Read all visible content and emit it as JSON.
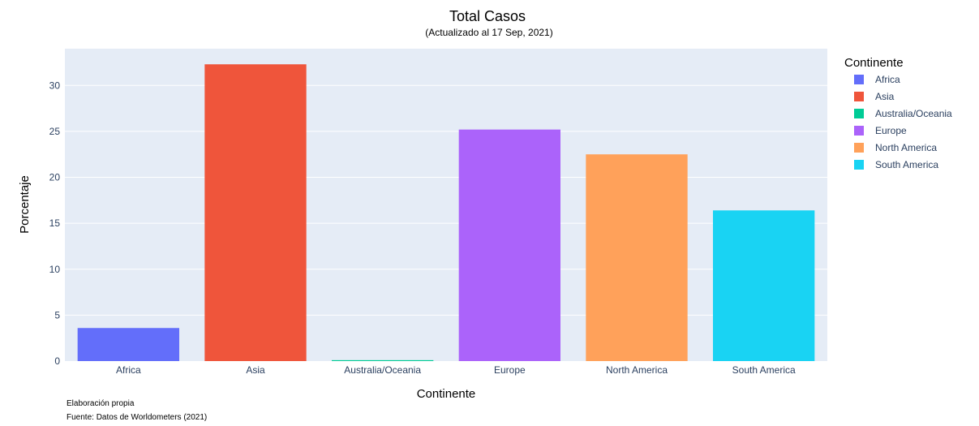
{
  "chart_data": {
    "type": "bar",
    "title": "Total Casos",
    "subtitle": "(Actualizado al 17 Sep, 2021)",
    "xlabel": "Continente",
    "ylabel": "Porcentaje",
    "categories": [
      "Africa",
      "Asia",
      "Australia/Oceania",
      "Europe",
      "North America",
      "South America"
    ],
    "values": [
      3.6,
      32.3,
      0.1,
      25.2,
      22.5,
      16.4
    ],
    "colors": [
      "#636efa",
      "#EF553B",
      "#00cc96",
      "#ab63fa",
      "#FFA15A",
      "#19d3f3"
    ],
    "ylim": [
      0,
      34
    ],
    "yticks": [
      0,
      5,
      10,
      15,
      20,
      25,
      30
    ],
    "grid": true,
    "legend": {
      "title": "Continente",
      "placement": "right",
      "items": [
        "Africa",
        "Asia",
        "Australia/Oceania",
        "Europe",
        "North America",
        "South America"
      ]
    },
    "annotations": [
      "Elaboración propia",
      "Fuente: Datos de Worldometers (2021)"
    ]
  }
}
